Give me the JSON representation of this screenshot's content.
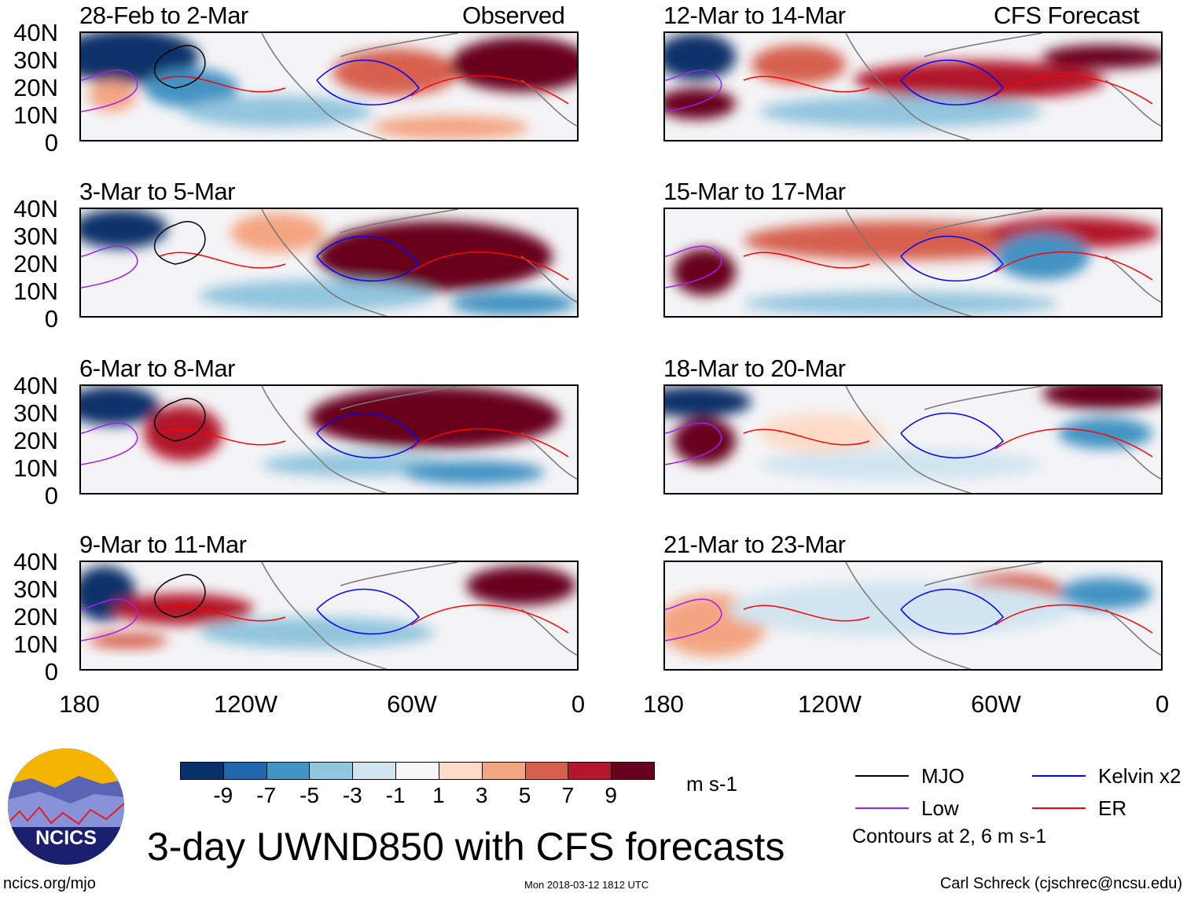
{
  "header": {
    "observed_label": "Observed",
    "forecast_label": "CFS Forecast"
  },
  "panels": {
    "left": [
      {
        "title": "28-Feb to 2-Mar"
      },
      {
        "title": "3-Mar to 5-Mar"
      },
      {
        "title": "6-Mar to 8-Mar"
      },
      {
        "title": "9-Mar to 11-Mar"
      }
    ],
    "right": [
      {
        "title": "12-Mar to 14-Mar"
      },
      {
        "title": "15-Mar to 17-Mar"
      },
      {
        "title": "18-Mar to 20-Mar"
      },
      {
        "title": "21-Mar to 23-Mar"
      }
    ]
  },
  "axes": {
    "lat_labels": [
      "40N",
      "30N",
      "20N",
      "10N",
      "0"
    ],
    "lon_labels": [
      "180",
      "120W",
      "60W",
      "0"
    ]
  },
  "colorbar": {
    "labels": [
      "-9",
      "-7",
      "-5",
      "-3",
      "-1",
      "1",
      "3",
      "5",
      "7",
      "9"
    ],
    "colors": [
      "#08306b",
      "#2166ac",
      "#4393c3",
      "#92c5de",
      "#d1e5f0",
      "#f7f7f7",
      "#fddbc7",
      "#f4a582",
      "#d6604d",
      "#b2182b",
      "#67001f"
    ],
    "units": "m s-1"
  },
  "legend": {
    "items": [
      {
        "label": "MJO",
        "color": "#000000"
      },
      {
        "label": "Kelvin x2",
        "color": "#0000ff"
      },
      {
        "label": "Low",
        "color": "#a020f0"
      },
      {
        "label": "ER",
        "color": "#ff0000"
      }
    ],
    "note": "Contours at 2, 6 m s-1"
  },
  "logo": {
    "text": "NCICS"
  },
  "footer": {
    "title": "3-day UWND850 with CFS forecasts",
    "url": "ncics.org/mjo",
    "timestamp": "Mon 2018-03-12 1812 UTC",
    "credit": "Carl Schreck (cjschrec@ncsu.edu)"
  }
}
